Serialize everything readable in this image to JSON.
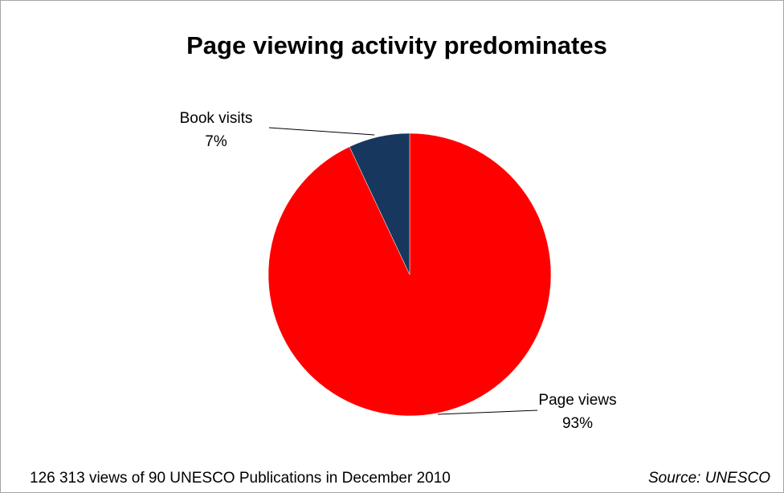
{
  "chart_data": {
    "type": "pie",
    "title": "Page viewing activity predominates",
    "slices": [
      {
        "label": "Page views",
        "value": 93,
        "value_label": "93%",
        "color": "#ff0000"
      },
      {
        "label": "Book visits",
        "value": 7,
        "value_label": "7%",
        "color": "#17375e"
      }
    ],
    "legend": "none",
    "data_labels": "outside with leader lines"
  },
  "footer": {
    "note": "126 313 views of 90 UNESCO Publications in December 2010",
    "source": "Source: UNESCO"
  }
}
